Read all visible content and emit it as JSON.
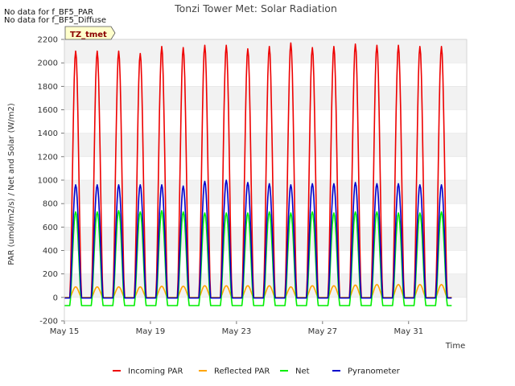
{
  "notes": [
    "No data for f_BF5_PAR",
    "No data for f_BF5_Diffuse"
  ],
  "tag": "TZ_tmet",
  "chart_data": {
    "type": "line",
    "title": "Tonzi Tower Met: Solar Radiation",
    "xlabel": "Time",
    "ylabel": "PAR (umol/m2/s) / Net and Solar (W/m2)",
    "xlim": [
      15,
      33.7
    ],
    "ylim": [
      -200,
      2200
    ],
    "yticks": [
      -200,
      0,
      200,
      400,
      600,
      800,
      1000,
      1200,
      1400,
      1600,
      1800,
      2000,
      2200
    ],
    "xticks": [
      {
        "value": 15,
        "label": "May 15"
      },
      {
        "value": 19,
        "label": "May 19"
      },
      {
        "value": 23,
        "label": "May 23"
      },
      {
        "value": 27,
        "label": "May 27"
      },
      {
        "value": 31,
        "label": "May 31"
      }
    ],
    "grid": "horizontal bands",
    "legend_position": "bottom",
    "days": [
      15,
      16,
      17,
      18,
      19,
      20,
      21,
      22,
      23,
      24,
      25,
      26,
      27,
      28,
      29,
      30,
      31,
      32
    ],
    "series": [
      {
        "name": "Incoming PAR",
        "color": "#ee0000",
        "night": 0,
        "daily_peak": [
          2100,
          2100,
          2100,
          2080,
          2140,
          2130,
          2150,
          2150,
          2120,
          2140,
          2170,
          2130,
          2140,
          2160,
          2150,
          2150,
          2140,
          2140
        ]
      },
      {
        "name": "Reflected PAR",
        "color": "#ffa500",
        "night": 0,
        "daily_peak": [
          90,
          90,
          90,
          90,
          95,
          95,
          100,
          100,
          100,
          100,
          90,
          100,
          100,
          105,
          110,
          110,
          110,
          110
        ]
      },
      {
        "name": "Net",
        "color": "#00ee00",
        "night": -70,
        "daily_peak": [
          730,
          730,
          740,
          730,
          740,
          730,
          720,
          720,
          720,
          730,
          720,
          730,
          720,
          730,
          730,
          720,
          720,
          730
        ]
      },
      {
        "name": "Pyranometer",
        "color": "#0000cc",
        "night": -5,
        "daily_peak": [
          960,
          960,
          960,
          960,
          960,
          950,
          990,
          1000,
          980,
          970,
          960,
          970,
          970,
          980,
          970,
          970,
          960,
          960
        ]
      }
    ]
  }
}
